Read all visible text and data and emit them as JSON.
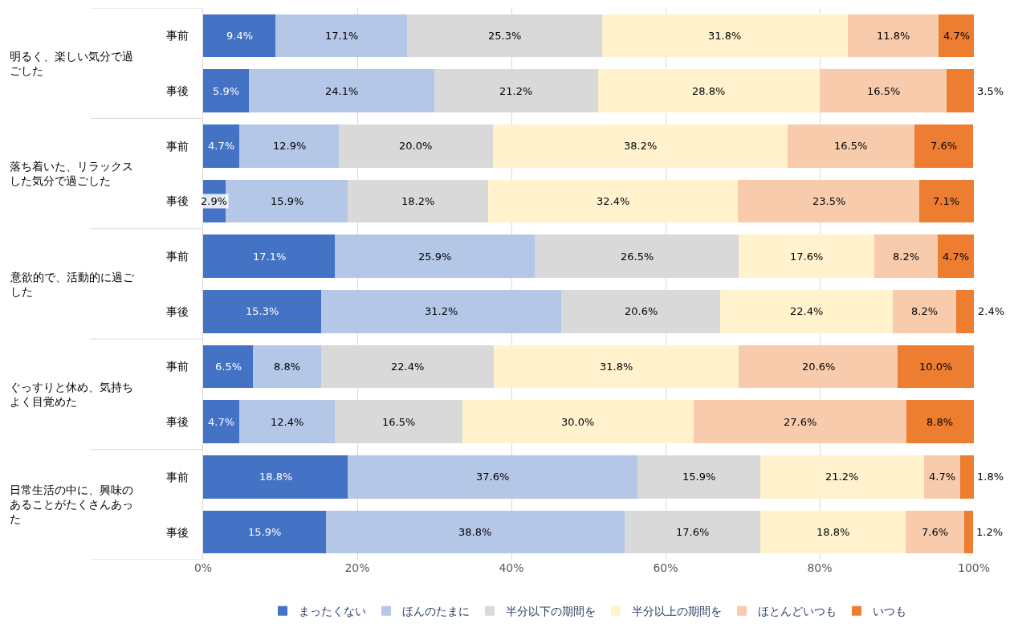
{
  "chart_data": {
    "type": "bar",
    "orientation": "horizontal",
    "stacked": true,
    "categories": [
      "事前",
      "事後",
      "事前",
      "事後",
      "事前",
      "事後",
      "事前",
      "事後",
      "事前",
      "事後"
    ],
    "annotations": [
      "明るく、楽しい気分で過ごした",
      "落ち着いた、リラックスした気分で過ごした",
      "意欲的で、活動的に過ごした",
      "ぐっすりと休め、気持ちよく目覚めた",
      "日常生活の中に、興味のあることがたくさんあった"
    ],
    "series": [
      {
        "name": "まったくない",
        "color": "#4472c4",
        "values": [
          9.4,
          5.9,
          4.7,
          2.9,
          17.1,
          15.3,
          6.5,
          4.7,
          18.8,
          15.9
        ],
        "value_labels": [
          "9.4%",
          "5.9%",
          "4.7%",
          "2.9%",
          "17.1%",
          "15.3%",
          "6.5%",
          "4.7%",
          "18.8%",
          "15.9%"
        ]
      },
      {
        "name": "ほんのたまに",
        "color": "#b4c7e7",
        "values": [
          17.1,
          24.1,
          12.9,
          15.9,
          25.9,
          31.2,
          8.8,
          12.4,
          37.6,
          38.8
        ],
        "value_labels": [
          "17.1%",
          "24.1%",
          "12.9%",
          "15.9%",
          "25.9%",
          "31.2%",
          "8.8%",
          "12.4%",
          "37.6%",
          "38.8%"
        ]
      },
      {
        "name": "半分以下の期間を",
        "color": "#d9d9d9",
        "values": [
          25.3,
          21.2,
          20.0,
          18.2,
          26.5,
          20.6,
          22.4,
          16.5,
          15.9,
          17.6
        ],
        "value_labels": [
          "25.3%",
          "21.2%",
          "20.0%",
          "18.2%",
          "26.5%",
          "20.6%",
          "22.4%",
          "16.5%",
          "15.9%",
          "17.6%"
        ]
      },
      {
        "name": "半分以上の期間を",
        "color": "#fff2cc",
        "values": [
          31.8,
          28.8,
          38.2,
          32.4,
          17.6,
          22.4,
          31.8,
          30.0,
          21.2,
          18.8
        ],
        "value_labels": [
          "31.8%",
          "28.8%",
          "38.2%",
          "32.4%",
          "17.6%",
          "22.4%",
          "31.8%",
          "30.0%",
          "21.2%",
          "18.8%"
        ]
      },
      {
        "name": "ほとんどいつも",
        "color": "#f8cbad",
        "values": [
          11.8,
          16.5,
          16.5,
          23.5,
          8.2,
          8.2,
          20.6,
          27.6,
          4.7,
          7.6
        ],
        "value_labels": [
          "11.8%",
          "16.5%",
          "16.5%",
          "23.5%",
          "8.2%",
          "8.2%",
          "20.6%",
          "27.6%",
          "4.7%",
          "7.6%"
        ]
      },
      {
        "name": "いつも",
        "color": "#ed7d31",
        "values": [
          4.7,
          3.5,
          7.6,
          7.1,
          4.7,
          2.4,
          10.0,
          8.8,
          1.8,
          1.2
        ],
        "value_labels": [
          "4.7%",
          "3.5%",
          "7.6%",
          "7.1%",
          "4.7%",
          "2.4%",
          "10.0%",
          "8.8%",
          "1.8%",
          "1.2%"
        ]
      }
    ],
    "xlim": [
      0,
      100
    ],
    "xticks": [
      {
        "value": 0,
        "label": "0%"
      },
      {
        "value": 20,
        "label": "20%"
      },
      {
        "value": 40,
        "label": "40%"
      },
      {
        "value": 60,
        "label": "60%"
      },
      {
        "value": 80,
        "label": "80%"
      },
      {
        "value": 100,
        "label": "100%"
      }
    ],
    "grid": "x",
    "legend": "bottom"
  }
}
